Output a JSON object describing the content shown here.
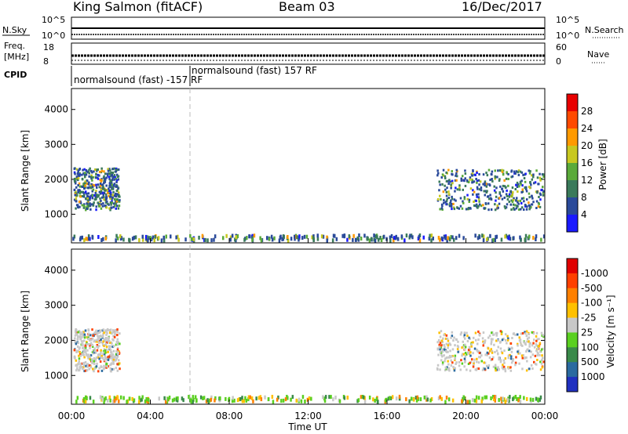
{
  "header": {
    "station": "King Salmon (fitACF)",
    "beam": "Beam 03",
    "date": "16/Dec/2017"
  },
  "panels": {
    "nsky_label": "N.Sky",
    "nsky_ticks": [
      "10^5",
      "10^0"
    ],
    "nsearch_label": "N.Search",
    "nsearch_ticks": [
      "10^5",
      "10^0"
    ],
    "freq_label_line1": "Freq.",
    "freq_label_line2": "[MHz]",
    "freq_ticks": [
      "18",
      "8"
    ],
    "nave_label": "Nave",
    "nave_ticks": [
      "60",
      "0"
    ],
    "cpid_label": "CPID",
    "cpid_segments": [
      "normalsound (fast) -157 RF",
      "normalsound (fast) 157 RF"
    ]
  },
  "chart_data": [
    {
      "type": "heatmap",
      "name": "power",
      "ylabel": "Slant Range [km]",
      "xlabel": "",
      "xlim_hours": [
        0,
        24
      ],
      "ylim": [
        180,
        4600
      ],
      "yticks": [
        1000,
        2000,
        3000,
        4000
      ],
      "colorbar_label": "Power [dB]",
      "colorbar_ticks": [
        "4",
        "8",
        "12",
        "16",
        "20",
        "24",
        "28"
      ],
      "colorbar_colors": [
        "#1a1aff",
        "#2a4a9a",
        "#3a7a5a",
        "#5aaa3a",
        "#c8c820",
        "#ff9a00",
        "#ff4a00",
        "#e80000"
      ],
      "echo_regions": [
        {
          "t_start": 0.1,
          "t_end": 2.4,
          "r_low": 1150,
          "r_high": 2350,
          "power": 10
        },
        {
          "t_start": 18.5,
          "t_end": 23.9,
          "r_low": 1150,
          "r_high": 2300,
          "power": 8
        },
        {
          "t_start": 0.0,
          "t_end": 24.0,
          "r_low": 300,
          "r_high": 450,
          "power": 8
        }
      ]
    },
    {
      "type": "heatmap",
      "name": "velocity",
      "ylabel": "Slant Range [km]",
      "xlabel": "Time UT",
      "xlim_hours": [
        0,
        24
      ],
      "ylim": [
        180,
        4600
      ],
      "yticks": [
        1000,
        2000,
        3000,
        4000
      ],
      "xticks": [
        "00:00",
        "04:00",
        "08:00",
        "12:00",
        "16:00",
        "20:00",
        "00:00"
      ],
      "colorbar_label": "Velocity [m s⁻¹]",
      "colorbar_ticks": [
        "1000",
        "500",
        "100",
        "25",
        "-25",
        "-100",
        "-500",
        "-1000"
      ],
      "colorbar_colors": [
        "#2030c0",
        "#2a6aa0",
        "#3a8a4a",
        "#5ad020",
        "#c8c8c8",
        "#ffc000",
        "#ff8000",
        "#ff4000",
        "#e00000"
      ],
      "echo_regions": [
        {
          "t_start": 0.1,
          "t_end": 2.4,
          "r_low": 1150,
          "r_high": 2350,
          "velocity": 0
        },
        {
          "t_start": 18.5,
          "t_end": 23.9,
          "r_low": 1150,
          "r_high": 2300,
          "velocity": 0
        },
        {
          "t_start": 0.0,
          "t_end": 24.0,
          "r_low": 300,
          "r_high": 450,
          "velocity": 60
        }
      ]
    }
  ]
}
